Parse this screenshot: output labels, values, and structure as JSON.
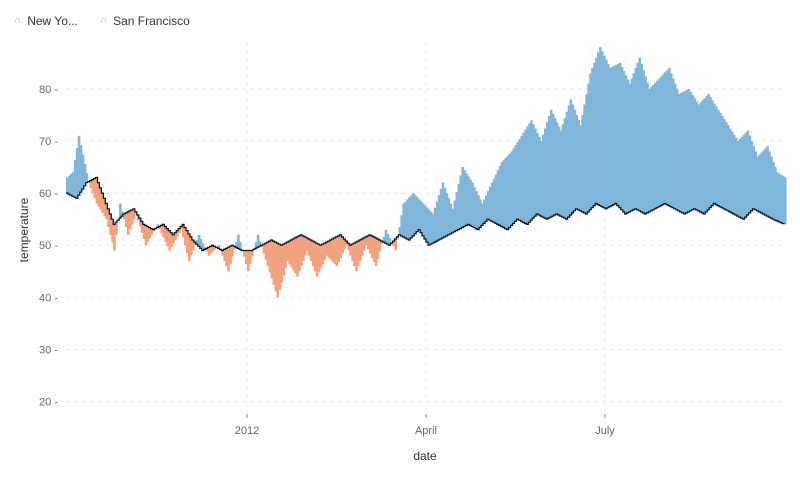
{
  "chart_data": {
    "type": "area",
    "xlabel": "date",
    "ylabel": "temperature",
    "ylim": [
      18,
      89
    ],
    "y_ticks": [
      20,
      30,
      40,
      50,
      60,
      70,
      80
    ],
    "x_ticks": [
      {
        "label": "2012",
        "date": "2012-01-01"
      },
      {
        "label": "April",
        "date": "2012-04-01"
      },
      {
        "label": "July",
        "date": "2012-07-01"
      }
    ],
    "xlim": [
      "2011-10-01",
      "2012-09-30"
    ],
    "grid": true,
    "legend_position": "top-left",
    "series": [
      {
        "name": "New York",
        "legend_label": "New Yo...",
        "color": "#7fb6da",
        "keyframes": [
          [
            "2011-10-01",
            63
          ],
          [
            "2011-10-04",
            64
          ],
          [
            "2011-10-07",
            71
          ],
          [
            "2011-10-12",
            62
          ],
          [
            "2011-10-16",
            58
          ],
          [
            "2011-10-21",
            55
          ],
          [
            "2011-10-25",
            49
          ],
          [
            "2011-10-28",
            58
          ],
          [
            "2011-11-01",
            52
          ],
          [
            "2011-11-05",
            56
          ],
          [
            "2011-11-10",
            50
          ],
          [
            "2011-11-16",
            54
          ],
          [
            "2011-11-22",
            49
          ],
          [
            "2011-11-28",
            53
          ],
          [
            "2011-12-02",
            47
          ],
          [
            "2011-12-07",
            52
          ],
          [
            "2011-12-12",
            48
          ],
          [
            "2011-12-17",
            50
          ],
          [
            "2011-12-22",
            45
          ],
          [
            "2011-12-27",
            52
          ],
          [
            "2012-01-01",
            45
          ],
          [
            "2012-01-06",
            52
          ],
          [
            "2012-01-11",
            46
          ],
          [
            "2012-01-16",
            40
          ],
          [
            "2012-01-21",
            47
          ],
          [
            "2012-01-26",
            44
          ],
          [
            "2012-01-31",
            49
          ],
          [
            "2012-02-05",
            44
          ],
          [
            "2012-02-10",
            48
          ],
          [
            "2012-02-15",
            46
          ],
          [
            "2012-02-20",
            50
          ],
          [
            "2012-02-25",
            45
          ],
          [
            "2012-03-01",
            50
          ],
          [
            "2012-03-06",
            46
          ],
          [
            "2012-03-11",
            53
          ],
          [
            "2012-03-16",
            49
          ],
          [
            "2012-03-20",
            58
          ],
          [
            "2012-03-25",
            60
          ],
          [
            "2012-03-30",
            58
          ],
          [
            "2012-04-04",
            56
          ],
          [
            "2012-04-09",
            62
          ],
          [
            "2012-04-14",
            57
          ],
          [
            "2012-04-19",
            65
          ],
          [
            "2012-04-24",
            62
          ],
          [
            "2012-04-29",
            58
          ],
          [
            "2012-05-04",
            62
          ],
          [
            "2012-05-09",
            66
          ],
          [
            "2012-05-14",
            68
          ],
          [
            "2012-05-19",
            71
          ],
          [
            "2012-05-24",
            74
          ],
          [
            "2012-05-29",
            70
          ],
          [
            "2012-06-03",
            76
          ],
          [
            "2012-06-08",
            72
          ],
          [
            "2012-06-13",
            78
          ],
          [
            "2012-06-18",
            73
          ],
          [
            "2012-06-23",
            83
          ],
          [
            "2012-06-28",
            88
          ],
          [
            "2012-07-03",
            84
          ],
          [
            "2012-07-08",
            85
          ],
          [
            "2012-07-13",
            81
          ],
          [
            "2012-07-18",
            86
          ],
          [
            "2012-07-23",
            80
          ],
          [
            "2012-07-28",
            82
          ],
          [
            "2012-08-02",
            84
          ],
          [
            "2012-08-07",
            79
          ],
          [
            "2012-08-12",
            80
          ],
          [
            "2012-08-17",
            77
          ],
          [
            "2012-08-22",
            79
          ],
          [
            "2012-08-27",
            76
          ],
          [
            "2012-09-01",
            73
          ],
          [
            "2012-09-06",
            70
          ],
          [
            "2012-09-11",
            72
          ],
          [
            "2012-09-16",
            67
          ],
          [
            "2012-09-21",
            69
          ],
          [
            "2012-09-26",
            64
          ],
          [
            "2012-09-30",
            63
          ]
        ]
      },
      {
        "name": "San Francisco",
        "legend_label": "San Francisco",
        "color": "#f1a37f",
        "keyframes": [
          [
            "2011-10-01",
            60
          ],
          [
            "2011-10-06",
            59
          ],
          [
            "2011-10-11",
            62
          ],
          [
            "2011-10-16",
            63
          ],
          [
            "2011-10-21",
            58
          ],
          [
            "2011-10-25",
            54
          ],
          [
            "2011-10-30",
            56
          ],
          [
            "2011-11-04",
            57
          ],
          [
            "2011-11-09",
            54
          ],
          [
            "2011-11-14",
            53
          ],
          [
            "2011-11-19",
            54
          ],
          [
            "2011-11-24",
            52
          ],
          [
            "2011-11-29",
            54
          ],
          [
            "2011-12-04",
            51
          ],
          [
            "2011-12-09",
            49
          ],
          [
            "2011-12-14",
            50
          ],
          [
            "2011-12-19",
            49
          ],
          [
            "2011-12-24",
            50
          ],
          [
            "2011-12-29",
            49
          ],
          [
            "2012-01-03",
            49
          ],
          [
            "2012-01-08",
            50
          ],
          [
            "2012-01-13",
            51
          ],
          [
            "2012-01-18",
            50
          ],
          [
            "2012-01-23",
            51
          ],
          [
            "2012-01-28",
            52
          ],
          [
            "2012-02-02",
            51
          ],
          [
            "2012-02-07",
            50
          ],
          [
            "2012-02-12",
            51
          ],
          [
            "2012-02-17",
            52
          ],
          [
            "2012-02-22",
            50
          ],
          [
            "2012-02-27",
            51
          ],
          [
            "2012-03-03",
            52
          ],
          [
            "2012-03-08",
            51
          ],
          [
            "2012-03-13",
            50
          ],
          [
            "2012-03-18",
            52
          ],
          [
            "2012-03-23",
            51
          ],
          [
            "2012-03-28",
            53
          ],
          [
            "2012-04-02",
            50
          ],
          [
            "2012-04-07",
            51
          ],
          [
            "2012-04-12",
            52
          ],
          [
            "2012-04-17",
            53
          ],
          [
            "2012-04-22",
            54
          ],
          [
            "2012-04-27",
            53
          ],
          [
            "2012-05-02",
            55
          ],
          [
            "2012-05-07",
            54
          ],
          [
            "2012-05-12",
            53
          ],
          [
            "2012-05-17",
            55
          ],
          [
            "2012-05-22",
            54
          ],
          [
            "2012-05-27",
            56
          ],
          [
            "2012-06-01",
            55
          ],
          [
            "2012-06-06",
            56
          ],
          [
            "2012-06-11",
            55
          ],
          [
            "2012-06-16",
            57
          ],
          [
            "2012-06-21",
            56
          ],
          [
            "2012-06-26",
            58
          ],
          [
            "2012-07-01",
            57
          ],
          [
            "2012-07-06",
            58
          ],
          [
            "2012-07-11",
            56
          ],
          [
            "2012-07-16",
            57
          ],
          [
            "2012-07-21",
            56
          ],
          [
            "2012-07-26",
            57
          ],
          [
            "2012-07-31",
            58
          ],
          [
            "2012-08-05",
            57
          ],
          [
            "2012-08-10",
            56
          ],
          [
            "2012-08-15",
            57
          ],
          [
            "2012-08-20",
            56
          ],
          [
            "2012-08-25",
            58
          ],
          [
            "2012-08-30",
            57
          ],
          [
            "2012-09-04",
            56
          ],
          [
            "2012-09-09",
            55
          ],
          [
            "2012-09-14",
            57
          ],
          [
            "2012-09-19",
            56
          ],
          [
            "2012-09-24",
            55
          ],
          [
            "2012-09-30",
            54
          ]
        ]
      }
    ]
  }
}
